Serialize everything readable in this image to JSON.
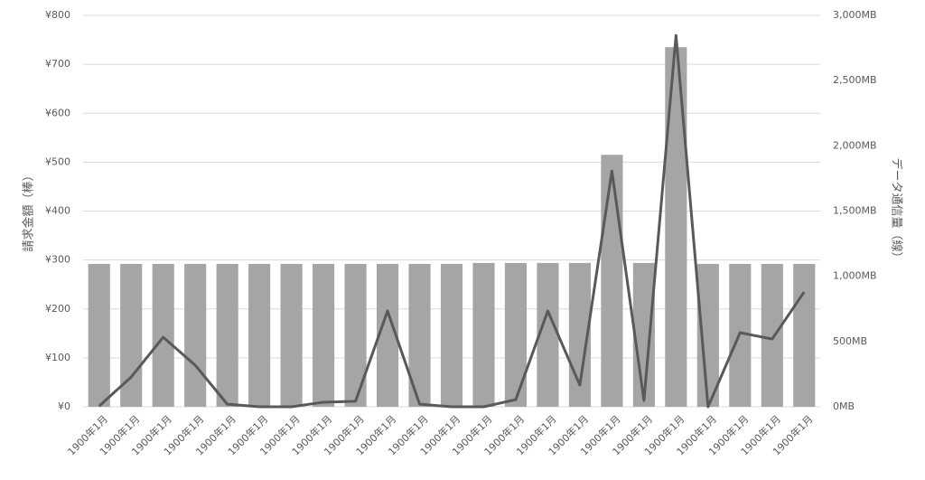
{
  "chart_data": {
    "type": "bar",
    "categories": [
      "1900年1月",
      "1900年1月",
      "1900年1月",
      "1900年1月",
      "1900年1月",
      "1900年1月",
      "1900年1月",
      "1900年1月",
      "1900年1月",
      "1900年1月",
      "1900年1月",
      "1900年1月",
      "1900年1月",
      "1900年1月",
      "1900年1月",
      "1900年1月",
      "1900年1月",
      "1900年1月",
      "1900年1月",
      "1900年1月",
      "1900年1月",
      "1900年1月",
      "1900年1月"
    ],
    "y_label": "請求金額（棒）",
    "y2_label": "データ通信量（線）",
    "series": [
      {
        "type": "bar",
        "color": "#a5a5a5",
        "values": [
          292,
          292,
          292,
          292,
          292,
          292,
          292,
          292,
          292,
          292,
          292,
          292,
          294,
          294,
          294,
          294,
          515,
          294,
          735,
          292,
          292,
          292,
          292
        ]
      },
      {
        "type": "line",
        "axis": "y2",
        "color": "#595959",
        "values": [
          5,
          228,
          533,
          318,
          20,
          0,
          0,
          35,
          42,
          734,
          20,
          0,
          0,
          55,
          734,
          166,
          1807,
          48,
          2846,
          0,
          568,
          519,
          880
        ]
      }
    ],
    "ylim": [
      0,
      800
    ],
    "yticks": [
      {
        "value": 0,
        "label": "¥0"
      },
      {
        "value": 100,
        "label": "¥100"
      },
      {
        "value": 200,
        "label": "¥200"
      },
      {
        "value": 300,
        "label": "¥300"
      },
      {
        "value": 400,
        "label": "¥400"
      },
      {
        "value": 500,
        "label": "¥500"
      },
      {
        "value": 600,
        "label": "¥600"
      },
      {
        "value": 700,
        "label": "¥700"
      },
      {
        "value": 800,
        "label": "¥800"
      }
    ],
    "y2lim": [
      0,
      3000
    ],
    "y2ticks": [
      {
        "value": 0,
        "label": "0MB"
      },
      {
        "value": 500,
        "label": "500MB"
      },
      {
        "value": 1000,
        "label": "1,000MB"
      },
      {
        "value": 1500,
        "label": "1,500MB"
      },
      {
        "value": 2000,
        "label": "2,000MB"
      },
      {
        "value": 2500,
        "label": "2,500MB"
      },
      {
        "value": 3000,
        "label": "3,000MB"
      }
    ],
    "grid": true
  }
}
